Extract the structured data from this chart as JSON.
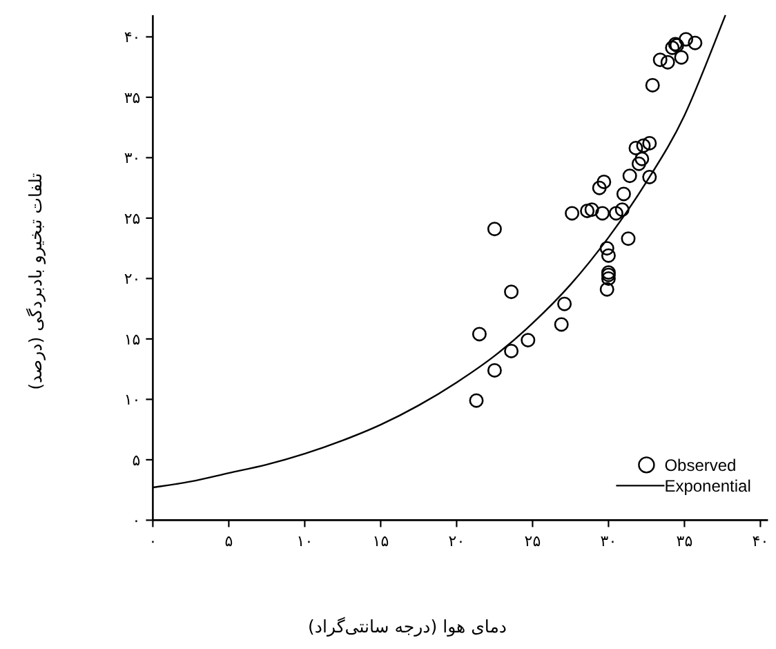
{
  "chart_data": {
    "type": "scatter",
    "xlabel": "دمای هوا (درجه سانتی‌گراد)",
    "ylabel": "تلفات تبخیرو بادبردگی (درصد)",
    "xlim": [
      0,
      40.5
    ],
    "ylim": [
      0,
      41.8
    ],
    "xticks": [
      {
        "value": 0,
        "label": "۰"
      },
      {
        "value": 5,
        "label": "۵"
      },
      {
        "value": 10,
        "label": "۱۰"
      },
      {
        "value": 15,
        "label": "۱۵"
      },
      {
        "value": 20,
        "label": "۲۰"
      },
      {
        "value": 25,
        "label": "۲۵"
      },
      {
        "value": 30,
        "label": "۳۰"
      },
      {
        "value": 35,
        "label": "۳۵"
      },
      {
        "value": 40,
        "label": "۴۰"
      }
    ],
    "yticks": [
      {
        "value": 0,
        "label": "۰"
      },
      {
        "value": 5,
        "label": "۵"
      },
      {
        "value": 10,
        "label": "۱۰"
      },
      {
        "value": 15,
        "label": "۱۵"
      },
      {
        "value": 20,
        "label": "۲۰"
      },
      {
        "value": 25,
        "label": "۲۵"
      },
      {
        "value": 30,
        "label": "۳۰"
      },
      {
        "value": 35,
        "label": "۳۵"
      },
      {
        "value": 40,
        "label": "۴۰"
      }
    ],
    "legend": "bottom right",
    "series": [
      {
        "name": "Observed",
        "marker": "circle",
        "color": "#000000",
        "x": [
          21.3,
          21.5,
          22.5,
          22.5,
          23.6,
          23.6,
          24.7,
          26.9,
          27.1,
          27.6,
          28.6,
          28.9,
          29.4,
          29.7,
          29.6,
          29.9,
          30.0,
          30.0,
          30.0,
          30.0,
          29.9,
          30.5,
          30.9,
          31.0,
          31.3,
          31.4,
          31.8,
          32.0,
          32.2,
          32.3,
          32.7,
          32.7,
          32.9,
          33.4,
          33.9,
          34.2,
          34.4,
          34.5,
          34.8,
          35.1,
          35.7
        ],
        "values": [
          9.9,
          15.4,
          12.4,
          24.1,
          18.9,
          14.0,
          14.9,
          16.2,
          17.9,
          25.4,
          25.6,
          25.7,
          27.5,
          28.0,
          25.4,
          22.5,
          21.9,
          20.5,
          20.3,
          20.0,
          19.1,
          25.4,
          25.7,
          27.0,
          23.3,
          28.5,
          30.8,
          29.5,
          29.9,
          31.0,
          31.2,
          28.4,
          36.0,
          38.1,
          37.9,
          39.1,
          39.4,
          39.3,
          38.3,
          39.8,
          39.5
        ]
      },
      {
        "name": "Exponential",
        "type": "line",
        "color": "#000000",
        "x": [
          0,
          2.5,
          5,
          7.5,
          10,
          12.5,
          15,
          17.5,
          20,
          22.5,
          25,
          27.5,
          30,
          32.5,
          35,
          37.7
        ],
        "values": [
          2.7,
          3.2,
          3.9,
          4.6,
          5.5,
          6.6,
          7.9,
          9.5,
          11.4,
          13.6,
          16.3,
          19.5,
          23.4,
          28.0,
          33.5,
          41.8
        ]
      }
    ]
  }
}
